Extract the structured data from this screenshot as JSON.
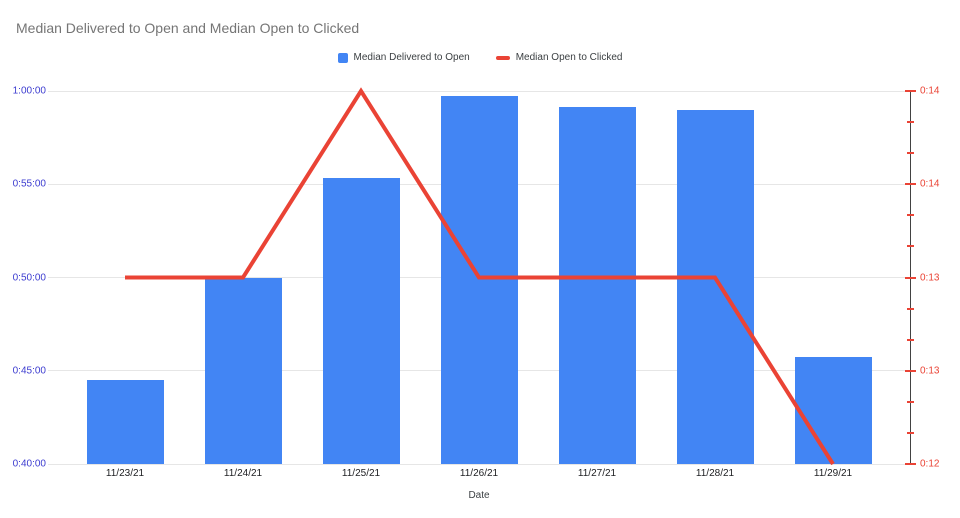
{
  "chart_data": {
    "type": "combo-bar-line",
    "title": "Median Delivered to Open and Median Open to Clicked",
    "xlabel": "Date",
    "legend_position": "top",
    "grid": true,
    "categories": [
      "11/23/21",
      "11/24/21",
      "11/25/21",
      "11/26/21",
      "11/27/21",
      "11/28/21",
      "11/29/21"
    ],
    "series": [
      {
        "name": "Median Delivered to Open",
        "type": "bar",
        "axis": "left",
        "color": "#4285F4",
        "values": [
          "0:44:30",
          "0:50:00",
          "0:55:20",
          "0:59:45",
          "0:59:10",
          "0:59:00",
          "0:45:45"
        ],
        "values_seconds": [
          2670,
          3000,
          3320,
          3585,
          3550,
          3540,
          2745
        ]
      },
      {
        "name": "Median Open to Clicked",
        "type": "line",
        "axis": "right",
        "color": "#EA4335",
        "values": [
          "0:13",
          "0:13",
          "0:14",
          "0:13",
          "0:13",
          "0:13",
          "0:12"
        ],
        "values_seconds": [
          780,
          780,
          840,
          780,
          780,
          780,
          720
        ]
      }
    ],
    "left_axis": {
      "ticks": [
        "1:00:00",
        "0:55:00",
        "0:50:00",
        "0:45:00",
        "0:40:00"
      ],
      "min_seconds": 2400,
      "max_seconds": 3600,
      "label_color": "#3c3cd0"
    },
    "right_axis": {
      "ticks": [
        "0:14",
        "0:14",
        "0:13",
        "0:13",
        "0:12"
      ],
      "min_seconds": 720,
      "max_seconds": 840,
      "minor_ticks_per_interval": 2,
      "label_color": "#EA4335",
      "line_color": "#424242"
    }
  }
}
